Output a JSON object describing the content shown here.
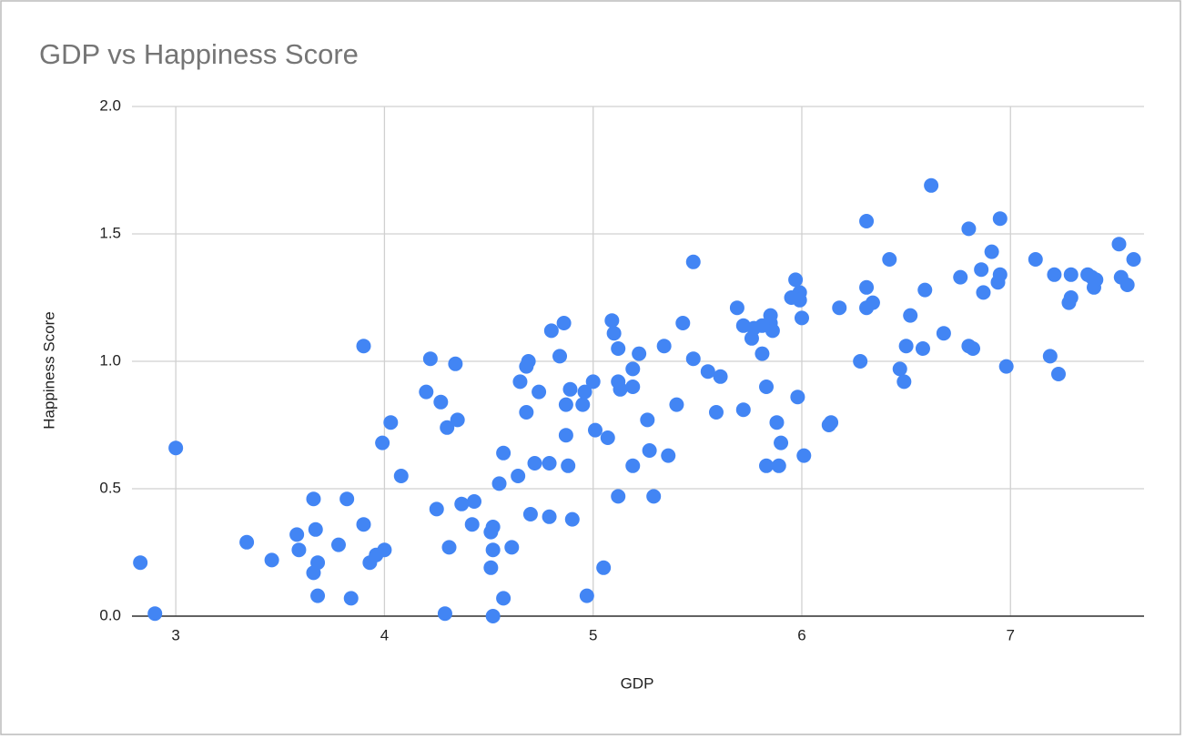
{
  "chart_data": {
    "type": "scatter",
    "title": "GDP vs Happiness Score",
    "x_label": "GDP",
    "y_label": "Happiness Score",
    "color": "#4285f4",
    "grid": true,
    "xlim": [
      2.79,
      7.64
    ],
    "ylim": [
      0,
      2
    ],
    "xticks": [
      3,
      4,
      5,
      6,
      7
    ],
    "yticks": [
      {
        "value": 0,
        "label": "0.0"
      },
      {
        "value": 0.5,
        "label": "0.5"
      },
      {
        "value": 1,
        "label": "1.0"
      },
      {
        "value": 1.5,
        "label": "1.5"
      },
      {
        "value": 2,
        "label": "2.0"
      }
    ],
    "x": [
      2.83,
      2.9,
      3.0,
      3.34,
      3.46,
      3.58,
      3.59,
      3.66,
      3.67,
      3.68,
      3.66,
      3.68,
      3.78,
      3.82,
      3.84,
      3.9,
      3.9,
      3.93,
      3.96,
      4.0,
      3.99,
      4.03,
      4.08,
      4.2,
      4.22,
      4.25,
      4.27,
      4.3,
      4.29,
      4.31,
      4.34,
      4.35,
      4.37,
      4.42,
      4.43,
      4.52,
      4.51,
      4.52,
      4.51,
      4.52,
      4.55,
      4.57,
      4.57,
      4.61,
      4.64,
      4.65,
      4.68,
      4.69,
      4.68,
      4.7,
      4.72,
      4.74,
      4.79,
      4.79,
      4.8,
      4.84,
      4.86,
      4.87,
      4.87,
      4.88,
      4.89,
      4.9,
      4.95,
      4.96,
      4.97,
      5.0,
      5.01,
      5.05,
      5.07,
      5.09,
      5.1,
      5.12,
      5.12,
      5.13,
      5.12,
      5.19,
      5.19,
      5.19,
      5.22,
      5.26,
      5.27,
      5.29,
      5.34,
      5.36,
      5.4,
      5.43,
      5.48,
      5.48,
      5.55,
      5.59,
      5.61,
      5.69,
      5.72,
      5.72,
      5.76,
      5.77,
      5.81,
      5.81,
      5.83,
      5.83,
      5.85,
      5.85,
      5.86,
      5.88,
      5.9,
      5.89,
      5.95,
      5.97,
      5.98,
      5.99,
      5.99,
      6.0,
      6.01,
      6.13,
      6.14,
      6.18,
      6.28,
      6.31,
      6.31,
      6.31,
      6.34,
      6.42,
      6.47,
      6.49,
      6.5,
      6.52,
      6.58,
      6.59,
      6.62,
      6.68,
      6.76,
      6.8,
      6.8,
      6.82,
      6.86,
      6.87,
      6.91,
      6.94,
      6.95,
      6.95,
      6.98,
      7.12,
      7.19,
      7.21,
      7.23,
      7.28,
      7.29,
      7.29,
      7.37,
      7.39,
      7.4,
      7.41,
      7.52,
      7.53,
      7.56,
      7.59
    ],
    "values": [
      0.21,
      0.01,
      0.66,
      0.29,
      0.22,
      0.32,
      0.26,
      0.46,
      0.34,
      0.21,
      0.17,
      0.08,
      0.28,
      0.46,
      0.07,
      1.06,
      0.36,
      0.21,
      0.24,
      0.26,
      0.68,
      0.76,
      0.55,
      0.88,
      1.01,
      0.42,
      0.84,
      0.74,
      0.01,
      0.27,
      0.99,
      0.77,
      0.44,
      0.36,
      0.45,
      0.35,
      0.33,
      0.26,
      0.19,
      0.0,
      0.52,
      0.64,
      0.07,
      0.27,
      0.55,
      0.92,
      0.98,
      1.0,
      0.8,
      0.4,
      0.6,
      0.88,
      0.6,
      0.39,
      1.12,
      1.02,
      1.15,
      0.71,
      0.83,
      0.59,
      0.89,
      0.38,
      0.83,
      0.88,
      0.08,
      0.92,
      0.73,
      0.19,
      0.7,
      1.16,
      1.11,
      1.05,
      0.92,
      0.89,
      0.47,
      0.97,
      0.9,
      0.59,
      1.03,
      0.77,
      0.65,
      0.47,
      1.06,
      0.63,
      0.83,
      1.15,
      1.39,
      1.01,
      0.96,
      0.8,
      0.94,
      1.21,
      0.81,
      1.14,
      1.09,
      1.13,
      1.14,
      1.03,
      0.9,
      0.59,
      1.15,
      1.18,
      1.12,
      0.76,
      0.68,
      0.59,
      1.25,
      1.32,
      0.86,
      1.27,
      1.24,
      1.17,
      0.63,
      0.75,
      0.76,
      1.21,
      1.0,
      1.55,
      1.29,
      1.21,
      1.23,
      1.4,
      0.97,
      0.92,
      1.06,
      1.18,
      1.05,
      1.28,
      1.69,
      1.11,
      1.33,
      1.06,
      1.52,
      1.05,
      1.36,
      1.27,
      1.43,
      1.31,
      1.34,
      1.56,
      0.98,
      1.4,
      1.02,
      1.34,
      0.95,
      1.23,
      1.25,
      1.34,
      1.34,
      1.33,
      1.29,
      1.32,
      1.46,
      1.33,
      1.3,
      1.4
    ]
  }
}
